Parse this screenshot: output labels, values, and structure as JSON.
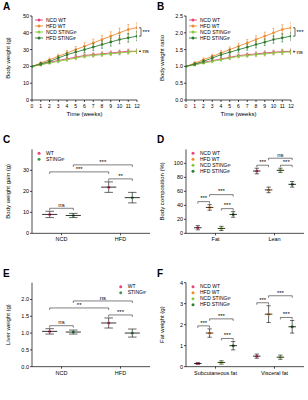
{
  "chart_data": [
    {
      "type": "line",
      "title": "A",
      "xlabel": "Time (weeks)",
      "ylabel": "Body weight (g)",
      "x": [
        0,
        1,
        2,
        3,
        4,
        5,
        6,
        7,
        8,
        9,
        10,
        11,
        12
      ],
      "xlim": [
        0,
        12
      ],
      "xticks": [
        0,
        1,
        2,
        3,
        4,
        5,
        6,
        7,
        8,
        9,
        10,
        11,
        12
      ],
      "ylim": [
        0,
        50
      ],
      "yticks": [
        0,
        10,
        20,
        30,
        40,
        50
      ],
      "legend": "top-left",
      "series": [
        {
          "name": "NCD WT",
          "color": "#e8437b",
          "values": [
            20,
            21,
            22.5,
            23.5,
            24.5,
            25.5,
            26.5,
            27,
            27.5,
            28,
            28.5,
            29,
            29
          ],
          "errors": [
            0.5,
            0.6,
            0.7,
            0.8,
            0.9,
            1,
            1,
            1.1,
            1.1,
            1.2,
            1.2,
            1.3,
            1.3
          ]
        },
        {
          "name": "HFD WT",
          "color": "#f28a30",
          "values": [
            20,
            22,
            24,
            26,
            28,
            30,
            32,
            34,
            36,
            38,
            40,
            42,
            43
          ],
          "errors": [
            0.5,
            0.8,
            1,
            1.3,
            1.5,
            1.8,
            2,
            2.2,
            2.4,
            2.6,
            2.8,
            3,
            3
          ]
        },
        {
          "name": "NCD STINGᵍᵗ",
          "color": "#8cc63f",
          "values": [
            20,
            21,
            22,
            23,
            24,
            25,
            26,
            26.5,
            27,
            27.5,
            28,
            28.5,
            29
          ],
          "errors": [
            0.5,
            0.6,
            0.7,
            0.8,
            0.9,
            1,
            1,
            1,
            1.1,
            1.1,
            1.2,
            1.2,
            1.3
          ]
        },
        {
          "name": "HFD STINGᵍᵗ",
          "color": "#2e7d32",
          "values": [
            20,
            21.5,
            23,
            25,
            27,
            28.5,
            30,
            31.5,
            33,
            34.5,
            36,
            37,
            38
          ],
          "errors": [
            0.5,
            0.8,
            1,
            1.2,
            1.4,
            1.6,
            1.8,
            2,
            2.2,
            2.4,
            2.5,
            2.6,
            2.7
          ]
        }
      ],
      "annotations": [
        {
          "text": "***",
          "from": "HFD WT",
          "to": "HFD STINGᵍᵗ"
        },
        {
          "text": "ns",
          "from": "NCD WT",
          "to": "NCD STINGᵍᵗ"
        }
      ]
    },
    {
      "type": "line",
      "title": "B",
      "xlabel": "Time (weeks)",
      "ylabel": "Body weight ratio",
      "x": [
        0,
        1,
        2,
        3,
        4,
        5,
        6,
        7,
        8,
        9,
        10,
        11,
        12
      ],
      "xlim": [
        0,
        12
      ],
      "xticks": [
        0,
        1,
        2,
        3,
        4,
        5,
        6,
        7,
        8,
        9,
        10,
        11,
        12
      ],
      "ylim": [
        0,
        2.5
      ],
      "yticks": [
        {
          "value": 0,
          "label": "0.0"
        },
        {
          "value": 0.5,
          "label": "0.5"
        },
        {
          "value": 1,
          "label": "1.0"
        },
        {
          "value": 1.5,
          "label": "1.5"
        },
        {
          "value": 2,
          "label": "2.0"
        },
        {
          "value": 2.5,
          "label": "2.5"
        }
      ],
      "legend": "top-left",
      "series": [
        {
          "name": "NCD WT",
          "color": "#e8437b",
          "values": [
            1,
            1.05,
            1.12,
            1.17,
            1.22,
            1.27,
            1.32,
            1.35,
            1.37,
            1.4,
            1.42,
            1.44,
            1.45
          ],
          "errors": [
            0,
            0.03,
            0.03,
            0.04,
            0.04,
            0.05,
            0.05,
            0.05,
            0.06,
            0.06,
            0.06,
            0.07,
            0.07
          ]
        },
        {
          "name": "HFD WT",
          "color": "#f28a30",
          "values": [
            1,
            1.1,
            1.2,
            1.3,
            1.4,
            1.5,
            1.6,
            1.7,
            1.8,
            1.9,
            2,
            2.1,
            2.15
          ],
          "errors": [
            0,
            0.04,
            0.05,
            0.06,
            0.07,
            0.08,
            0.09,
            0.1,
            0.11,
            0.12,
            0.13,
            0.14,
            0.15
          ]
        },
        {
          "name": "NCD STINGᵍᵗ",
          "color": "#8cc63f",
          "values": [
            1,
            1.05,
            1.1,
            1.15,
            1.2,
            1.25,
            1.3,
            1.32,
            1.35,
            1.37,
            1.4,
            1.42,
            1.43
          ],
          "errors": [
            0,
            0.03,
            0.03,
            0.04,
            0.04,
            0.05,
            0.05,
            0.05,
            0.06,
            0.06,
            0.06,
            0.07,
            0.07
          ]
        },
        {
          "name": "HFD STINGᵍᵗ",
          "color": "#2e7d32",
          "values": [
            1,
            1.07,
            1.15,
            1.25,
            1.35,
            1.42,
            1.5,
            1.57,
            1.65,
            1.72,
            1.8,
            1.85,
            1.9
          ],
          "errors": [
            0,
            0.04,
            0.05,
            0.06,
            0.07,
            0.08,
            0.08,
            0.09,
            0.1,
            0.1,
            0.11,
            0.12,
            0.12
          ]
        }
      ],
      "annotations": [
        {
          "text": "***",
          "from": "HFD WT",
          "to": "HFD STINGᵍᵗ"
        },
        {
          "text": "ns",
          "from": "NCD WT",
          "to": "NCD STINGᵍᵗ"
        }
      ]
    },
    {
      "type": "dot",
      "title": "C",
      "ylabel": "Body weight gain (g)",
      "categories": [
        "NCD",
        "HFD"
      ],
      "ylim": [
        0,
        40
      ],
      "yticks": [
        0,
        10,
        20,
        30
      ],
      "legend": "top-left",
      "series": [
        {
          "name": "WT",
          "color": "#e8437b",
          "values": [
            9,
            22
          ],
          "errors": [
            1.5,
            2.5
          ]
        },
        {
          "name": "STINGᵍᵗ",
          "color": "#3f9b4b",
          "values": [
            8.5,
            17
          ],
          "errors": [
            1,
            2.5
          ]
        }
      ],
      "annotations": [
        {
          "text": "ns",
          "from": [
            "NCD",
            "WT"
          ],
          "to": [
            "NCD",
            "STINGᵍᵗ"
          ]
        },
        {
          "text": "**",
          "from": [
            "HFD",
            "WT"
          ],
          "to": [
            "HFD",
            "STINGᵍᵗ"
          ]
        },
        {
          "text": "***",
          "from": [
            "NCD",
            "WT"
          ],
          "to": [
            "HFD",
            "WT"
          ]
        },
        {
          "text": "***",
          "from": [
            "NCD",
            "STINGᵍᵗ"
          ],
          "to": [
            "HFD",
            "STINGᵍᵗ"
          ]
        }
      ]
    },
    {
      "type": "dot",
      "title": "D",
      "ylabel": "Body composition (%)",
      "categories": [
        "Fat",
        "Lean"
      ],
      "ylim": [
        0,
        120
      ],
      "yticks": [
        0,
        20,
        40,
        60,
        80,
        100
      ],
      "legend": "top-left",
      "series": [
        {
          "name": "NCD WT",
          "color": "#e8437b",
          "values": [
            8,
            89
          ],
          "errors": [
            3,
            4
          ]
        },
        {
          "name": "HFD WT",
          "color": "#f28a30",
          "values": [
            37,
            62
          ],
          "errors": [
            4,
            4
          ]
        },
        {
          "name": "NCD STINGᵍᵗ",
          "color": "#8cc63f",
          "values": [
            7,
            90
          ],
          "errors": [
            3,
            3
          ]
        },
        {
          "name": "HFD STINGᵍᵗ",
          "color": "#2e7d32",
          "values": [
            27,
            70
          ],
          "errors": [
            4,
            4
          ]
        }
      ],
      "annotations": [
        {
          "text": "***",
          "from": [
            "Fat",
            "NCD WT"
          ],
          "to": [
            "Fat",
            "HFD WT"
          ]
        },
        {
          "text": "***",
          "from": [
            "Fat",
            "NCD STINGᵍᵗ"
          ],
          "to": [
            "Fat",
            "HFD STINGᵍᵗ"
          ]
        },
        {
          "text": "***",
          "from": [
            "Fat",
            "HFD WT"
          ],
          "to": [
            "Fat",
            "HFD STINGᵍᵗ"
          ]
        },
        {
          "text": "***",
          "from": [
            "Lean",
            "NCD WT"
          ],
          "to": [
            "Lean",
            "HFD WT"
          ]
        },
        {
          "text": "***",
          "from": [
            "Lean",
            "NCD STINGᵍᵗ"
          ],
          "to": [
            "Lean",
            "HFD STINGᵍᵗ"
          ]
        },
        {
          "text": "ns",
          "from": [
            "Lean",
            "HFD WT"
          ],
          "to": [
            "Lean",
            "HFD STINGᵍᵗ"
          ]
        }
      ]
    },
    {
      "type": "dot",
      "title": "E",
      "ylabel": "Liver weight (g)",
      "categories": [
        "NCD",
        "HFD"
      ],
      "ylim": [
        0,
        2.5
      ],
      "yticks": [
        {
          "value": 0,
          "label": "0.0"
        },
        {
          "value": 0.5,
          "label": "0.5"
        },
        {
          "value": 1,
          "label": "1.0"
        },
        {
          "value": 1.5,
          "label": "1.5"
        },
        {
          "value": 2,
          "label": "2.0"
        }
      ],
      "legend": "top-right",
      "series": [
        {
          "name": "WT",
          "color": "#e8437b",
          "values": [
            1.05,
            1.3
          ],
          "errors": [
            0.08,
            0.15
          ]
        },
        {
          "name": "STINGᵍᵗ",
          "color": "#3f9b4b",
          "values": [
            1.03,
            1
          ],
          "errors": [
            0.06,
            0.12
          ]
        }
      ],
      "annotations": [
        {
          "text": "ns",
          "from": [
            "NCD",
            "WT"
          ],
          "to": [
            "NCD",
            "STINGᵍᵗ"
          ]
        },
        {
          "text": "***",
          "from": [
            "HFD",
            "WT"
          ],
          "to": [
            "HFD",
            "STINGᵍᵗ"
          ]
        },
        {
          "text": "**",
          "from": [
            "NCD",
            "WT"
          ],
          "to": [
            "HFD",
            "WT"
          ]
        },
        {
          "text": "ns",
          "from": [
            "NCD",
            "STINGᵍᵗ"
          ],
          "to": [
            "HFD",
            "STINGᵍᵗ"
          ]
        }
      ]
    },
    {
      "type": "dot",
      "title": "F",
      "ylabel": "Fat weight (g)",
      "categories": [
        "Subcutaneous fat",
        "Visceral fat"
      ],
      "ylim": [
        0,
        4
      ],
      "yticks": [
        0,
        1,
        2,
        3,
        4
      ],
      "legend": "top-left",
      "series": [
        {
          "name": "NCD WT",
          "color": "#e8437b",
          "values": [
            0.15,
            0.5
          ],
          "errors": [
            0.05,
            0.1
          ]
        },
        {
          "name": "HFD WT",
          "color": "#f28a30",
          "values": [
            1.6,
            2.5
          ],
          "errors": [
            0.2,
            0.4
          ]
        },
        {
          "name": "NCD STINGᵍᵗ",
          "color": "#8cc63f",
          "values": [
            0.2,
            0.45
          ],
          "errors": [
            0.08,
            0.1
          ]
        },
        {
          "name": "HFD STINGᵍᵗ",
          "color": "#2e7d32",
          "values": [
            1,
            1.9
          ],
          "errors": [
            0.2,
            0.3
          ]
        }
      ],
      "annotations": [
        {
          "text": "***",
          "from": [
            "Subcutaneous fat",
            "NCD WT"
          ],
          "to": [
            "Subcutaneous fat",
            "HFD WT"
          ]
        },
        {
          "text": "***",
          "from": [
            "Subcutaneous fat",
            "NCD STINGᵍᵗ"
          ],
          "to": [
            "Subcutaneous fat",
            "HFD STINGᵍᵗ"
          ]
        },
        {
          "text": "***",
          "from": [
            "Subcutaneous fat",
            "HFD WT"
          ],
          "to": [
            "Subcutaneous fat",
            "HFD STINGᵍᵗ"
          ]
        },
        {
          "text": "***",
          "from": [
            "Visceral fat",
            "NCD WT"
          ],
          "to": [
            "Visceral fat",
            "HFD WT"
          ]
        },
        {
          "text": "***",
          "from": [
            "Visceral fat",
            "NCD STINGᵍᵗ"
          ],
          "to": [
            "Visceral fat",
            "HFD STINGᵍᵗ"
          ]
        },
        {
          "text": "***",
          "from": [
            "Visceral fat",
            "HFD WT"
          ],
          "to": [
            "Visceral fat",
            "HFD STINGᵍᵗ"
          ]
        }
      ]
    }
  ]
}
